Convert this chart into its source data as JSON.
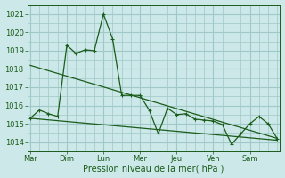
{
  "xlabel": "Pression niveau de la mer( hPa )",
  "bg_color": "#cce8e8",
  "grid_color": "#a0c8c8",
  "line_color": "#1a5c1a",
  "ylim": [
    1013.5,
    1021.5
  ],
  "day_labels": [
    "Mar",
    "Dim",
    "Lun",
    "Mer",
    "Jeu",
    "Ven",
    "Sam"
  ],
  "day_positions": [
    0,
    4,
    8,
    12,
    16,
    20,
    24
  ],
  "yticks": [
    1014,
    1015,
    1016,
    1017,
    1018,
    1019,
    1020,
    1021
  ],
  "xlim_min": -0.3,
  "xlim_max": 27.3,
  "series1_x": [
    0,
    1,
    2,
    3,
    4,
    5,
    6,
    7,
    8,
    9,
    10,
    11,
    12,
    13,
    14,
    15,
    16,
    17,
    18,
    19,
    20,
    21,
    22,
    23,
    24,
    25,
    26,
    27
  ],
  "series1_y": [
    1015.3,
    1015.75,
    1015.55,
    1015.4,
    1019.3,
    1018.85,
    1019.05,
    1019.0,
    1021.0,
    1019.65,
    1016.55,
    1016.55,
    1016.55,
    1015.75,
    1014.45,
    1015.85,
    1015.5,
    1015.55,
    1015.25,
    1015.2,
    1015.15,
    1014.95,
    1013.88,
    1014.45,
    1015.0,
    1015.4,
    1015.0,
    1014.18
  ],
  "trend1_x": [
    0,
    27
  ],
  "trend1_y": [
    1018.2,
    1014.2
  ],
  "trend2_x": [
    0,
    27
  ],
  "trend2_y": [
    1015.3,
    1014.1
  ]
}
